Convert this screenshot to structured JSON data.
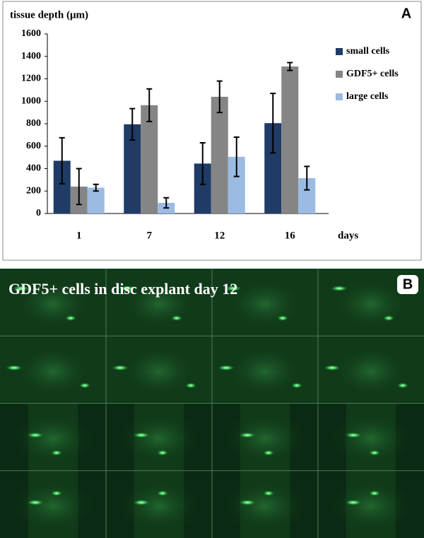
{
  "chart_data": {
    "type": "bar",
    "panel_label": "A",
    "title": "tissue depth (μm)",
    "x_label": "days",
    "categories": [
      "1",
      "7",
      "12",
      "16"
    ],
    "series": [
      {
        "name": "small cells",
        "color": "#1f3b66",
        "values": [
          470,
          795,
          445,
          805
        ],
        "errors": [
          205,
          140,
          185,
          265
        ]
      },
      {
        "name": "GDF5+ cells",
        "color": "#858585",
        "values": [
          240,
          965,
          1040,
          1310
        ],
        "errors": [
          160,
          145,
          140,
          35
        ]
      },
      {
        "name": "large cells",
        "color": "#9bbbe3",
        "values": [
          230,
          95,
          505,
          315
        ],
        "errors": [
          30,
          45,
          175,
          105
        ]
      }
    ],
    "ylim": [
      0,
      1600
    ],
    "yticks": [
      0,
      200,
      400,
      600,
      800,
      1000,
      1200,
      1400,
      1600
    ],
    "grid": false,
    "legend": "right"
  },
  "image": {
    "panel_label": "B",
    "caption": "GDF5+ cells in disc explant day 12"
  }
}
